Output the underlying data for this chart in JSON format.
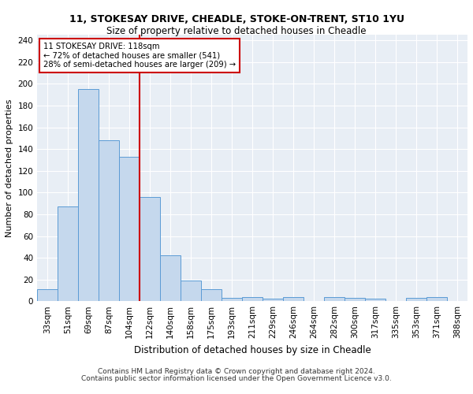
{
  "title1": "11, STOKESAY DRIVE, CHEADLE, STOKE-ON-TRENT, ST10 1YU",
  "title2": "Size of property relative to detached houses in Cheadle",
  "xlabel": "Distribution of detached houses by size in Cheadle",
  "ylabel": "Number of detached properties",
  "bar_color": "#c5d8ed",
  "bar_edge_color": "#5b9bd5",
  "bin_labels": [
    "33sqm",
    "51sqm",
    "69sqm",
    "87sqm",
    "104sqm",
    "122sqm",
    "140sqm",
    "158sqm",
    "175sqm",
    "193sqm",
    "211sqm",
    "229sqm",
    "246sqm",
    "264sqm",
    "282sqm",
    "300sqm",
    "317sqm",
    "335sqm",
    "353sqm",
    "371sqm",
    "388sqm"
  ],
  "bar_heights": [
    11,
    87,
    195,
    148,
    133,
    96,
    42,
    19,
    11,
    3,
    4,
    2,
    4,
    0,
    4,
    3,
    2,
    0,
    3,
    4,
    0
  ],
  "vline_x": 5,
  "vline_color": "#cc0000",
  "annotation_line1": "11 STOKESAY DRIVE: 118sqm",
  "annotation_line2": "← 72% of detached houses are smaller (541)",
  "annotation_line3": "28% of semi-detached houses are larger (209) →",
  "annotation_box_color": "white",
  "annotation_box_edge": "#cc0000",
  "ylim": [
    0,
    245
  ],
  "yticks": [
    0,
    20,
    40,
    60,
    80,
    100,
    120,
    140,
    160,
    180,
    200,
    220,
    240
  ],
  "footer1": "Contains HM Land Registry data © Crown copyright and database right 2024.",
  "footer2": "Contains public sector information licensed under the Open Government Licence v3.0.",
  "bg_color": "#ffffff",
  "plot_bg_color": "#e8eef5",
  "grid_color": "#ffffff",
  "title1_fontsize": 9,
  "title2_fontsize": 8.5
}
